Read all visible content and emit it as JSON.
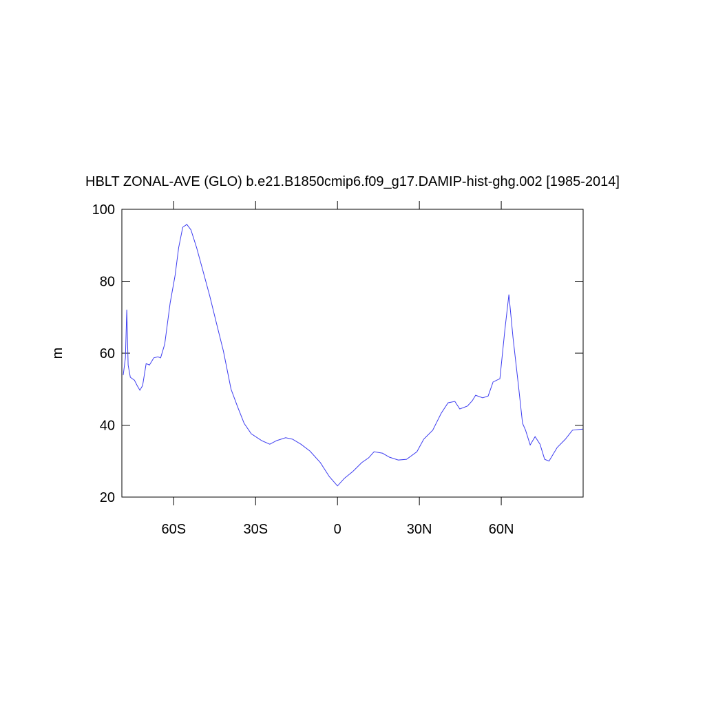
{
  "chart_data": {
    "type": "line",
    "title": "HBLT ZONAL-AVE (GLO) b.e21.B1850cmip6.f09_g17.DAMIP-hist-ghg.002 [1985-2014]",
    "ylabel": "m",
    "x": [
      -78.5,
      -77.7,
      -77.2,
      -76.7,
      -75.9,
      -74.4,
      -73.4,
      -72.4,
      -71.4,
      -70.1,
      -68.9,
      -67.3,
      -65.8,
      -64.8,
      -63.3,
      -61.3,
      -59.5,
      -58.2,
      -56.7,
      -55.2,
      -53.7,
      -51.6,
      -49.4,
      -46.8,
      -44.3,
      -41.8,
      -39,
      -36.7,
      -34.2,
      -31.6,
      -27.8,
      -24.8,
      -22.3,
      -19,
      -16.5,
      -13.4,
      -10.1,
      -6.3,
      -3,
      0,
      2.5,
      5.6,
      8.9,
      11.4,
      13.4,
      16.5,
      19,
      22.3,
      25.3,
      29.1,
      31.6,
      34.9,
      38,
      40.5,
      43,
      44.8,
      47.6,
      49.4,
      50.6,
      53.2,
      55.2,
      57,
      59.5,
      61.3,
      62.8,
      64.3,
      66.3,
      67.8,
      68.9,
      70.6,
      72.4,
      74.2,
      75.9,
      77.5,
      80.5,
      83.5,
      86.1,
      89.9
    ],
    "series": [
      {
        "name": "HBLT",
        "color": "#3c3cf0",
        "values": [
          53.9,
          58.7,
          72.1,
          56.7,
          53.3,
          52.5,
          51,
          49.7,
          51,
          57.1,
          56.7,
          58.7,
          59,
          58.7,
          62.5,
          74,
          81.6,
          89.3,
          95,
          95.8,
          94.3,
          89.3,
          83.2,
          75.9,
          68.2,
          60.6,
          50,
          45.3,
          40.5,
          37.6,
          35.7,
          34.7,
          35.7,
          36.5,
          36.1,
          34.7,
          32.8,
          29.6,
          25.7,
          23.1,
          25.2,
          27.1,
          29.6,
          30.9,
          32.6,
          32.2,
          31.1,
          30.3,
          30.5,
          32.6,
          36.1,
          38.6,
          43.3,
          46.2,
          46.6,
          44.5,
          45.3,
          46.8,
          48.3,
          47.6,
          48.1,
          52,
          52.9,
          66.3,
          76.3,
          64.4,
          51,
          40.5,
          38.6,
          34.5,
          36.8,
          34.7,
          30.5,
          30,
          33.8,
          36.1,
          38.6,
          38.9
        ]
      }
    ],
    "xlim": [
      -79,
      90
    ],
    "xticks": [
      {
        "value": -60,
        "label": "60S"
      },
      {
        "value": -30,
        "label": "30S"
      },
      0,
      {
        "value": 30,
        "label": "30N"
      },
      {
        "value": 60,
        "label": "60N"
      }
    ],
    "ylim": [
      20,
      100
    ],
    "yticks": [
      20,
      40,
      60,
      80,
      100
    ]
  }
}
